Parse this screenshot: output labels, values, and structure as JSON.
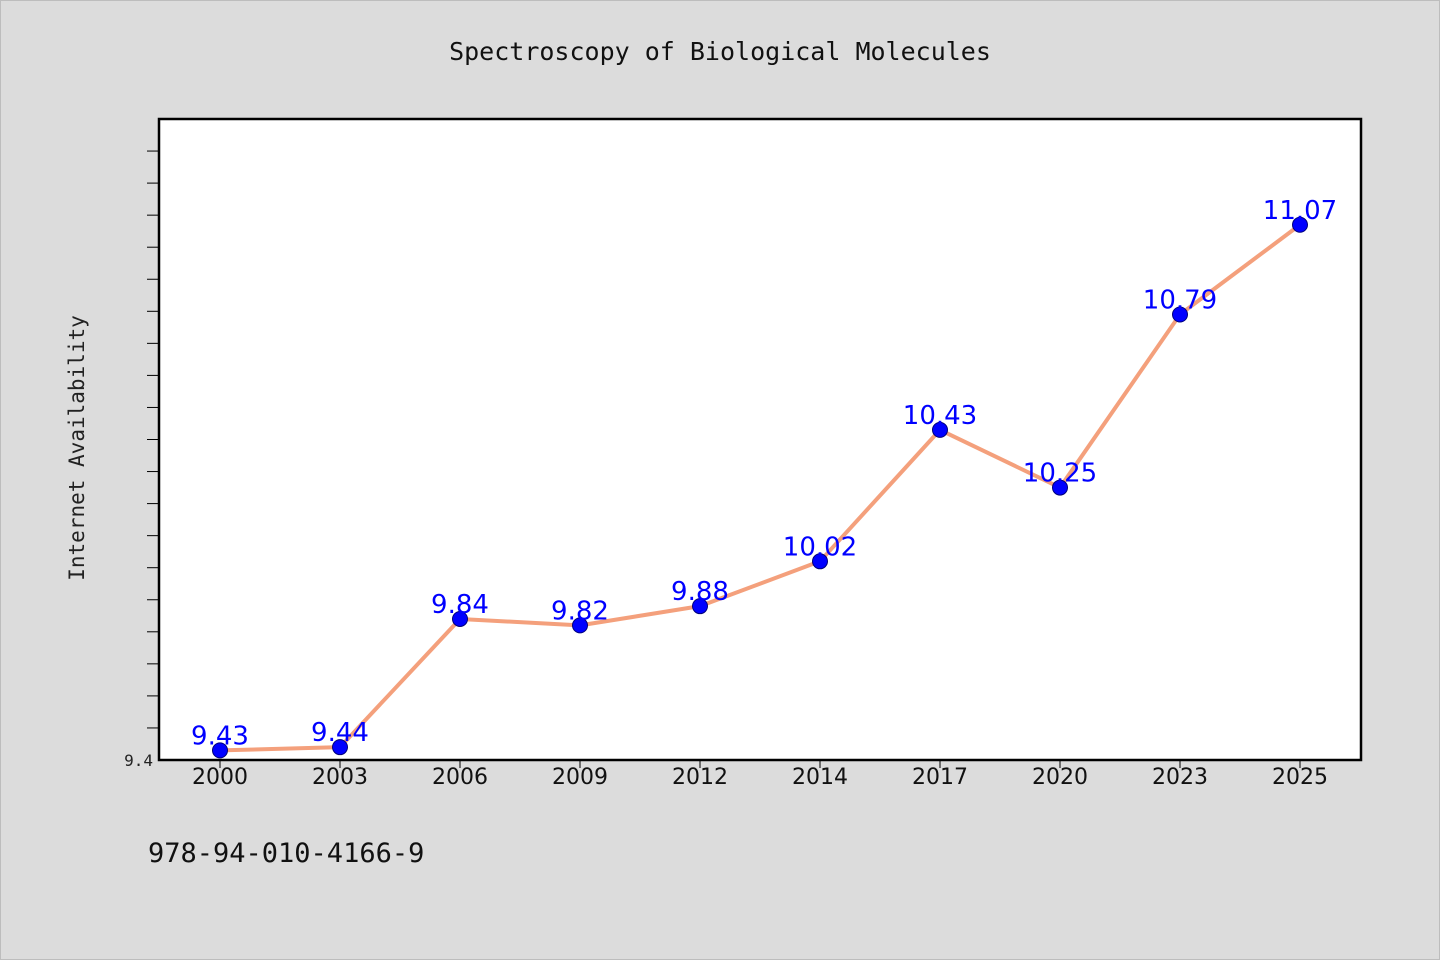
{
  "colors": {
    "background": "#dcdcdc",
    "plot_background": "#ffffff",
    "line": "#f4a07c",
    "marker": "#0000ff",
    "data_label": "#0000ff"
  },
  "isbn": "978-94-010-4166-9",
  "chart_data": {
    "type": "line",
    "title": "Spectroscopy of Biological Molecules",
    "xlabel": "",
    "ylabel": "Internet Availability",
    "categories": [
      "2000",
      "2003",
      "2006",
      "2009",
      "2012",
      "2014",
      "2017",
      "2020",
      "2023",
      "2025"
    ],
    "series": [
      {
        "values": [
          9.43,
          9.44,
          9.84,
          9.82,
          9.88,
          10.02,
          10.43,
          10.25,
          10.79,
          11.07
        ]
      }
    ],
    "data_labels": [
      "9.43",
      "9.44",
      "9.84",
      "9.82",
      "9.88",
      "10.02",
      "10.43",
      "10.25",
      "10.79",
      "11.07"
    ],
    "yticks": [
      {
        "value": 9.4,
        "label": "9.4"
      }
    ],
    "ylim": [
      9.4,
      11.4
    ],
    "y_minor_tick_step": 0.1,
    "grid": false,
    "legend": "none",
    "markers": "circle"
  }
}
